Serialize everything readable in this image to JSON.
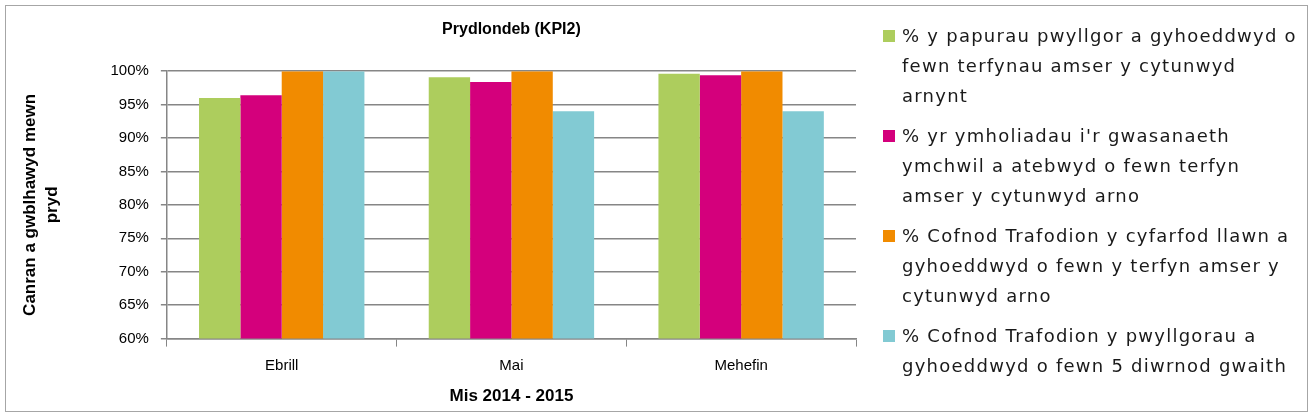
{
  "chart_data": {
    "type": "bar",
    "title": "Prydlondeb (KPI2)",
    "xlabel": "Mis 2014 - 2015",
    "ylabel": "Canran a gwblhawyd mewn pryd",
    "categories": [
      "Ebrill",
      "Mai",
      "Mehefin"
    ],
    "series": [
      {
        "name": "% y papurau pwyllgor a gyhoeddwyd o fewn terfynau amser y cytunwyd arnynt",
        "color": "#adcd5d",
        "values": [
          96,
          99.1,
          99.6
        ]
      },
      {
        "name": "% yr ymholiadau i'r gwasanaeth ymchwil a atebwyd o fewn terfyn amser y cytunwyd arno",
        "color": "#d4007c",
        "values": [
          96.4,
          98.4,
          99.4
        ]
      },
      {
        "name": "% Cofnod Trafodion y cyfarfod llawn a gyhoeddwyd o fewn y terfyn amser y cytunwyd arno",
        "color": "#f18b00",
        "values": [
          100,
          100,
          100
        ]
      },
      {
        "name": "% Cofnod Trafodion y pwyllgorau a gyhoeddwyd o fewn 5 diwrnod gwaith",
        "color": "#82cad3",
        "values": [
          100,
          94,
          94
        ]
      }
    ],
    "ylim": [
      60,
      100
    ],
    "yticks": [
      {
        "value": 60,
        "label": "60%"
      },
      {
        "value": 65,
        "label": "65%"
      },
      {
        "value": 70,
        "label": "70%"
      },
      {
        "value": 75,
        "label": "75%"
      },
      {
        "value": 80,
        "label": "80%"
      },
      {
        "value": 85,
        "label": "85%"
      },
      {
        "value": 90,
        "label": "90%"
      },
      {
        "value": 95,
        "label": "95%"
      },
      {
        "value": 100,
        "label": "100%"
      }
    ],
    "grid": "y",
    "legend": "right"
  }
}
